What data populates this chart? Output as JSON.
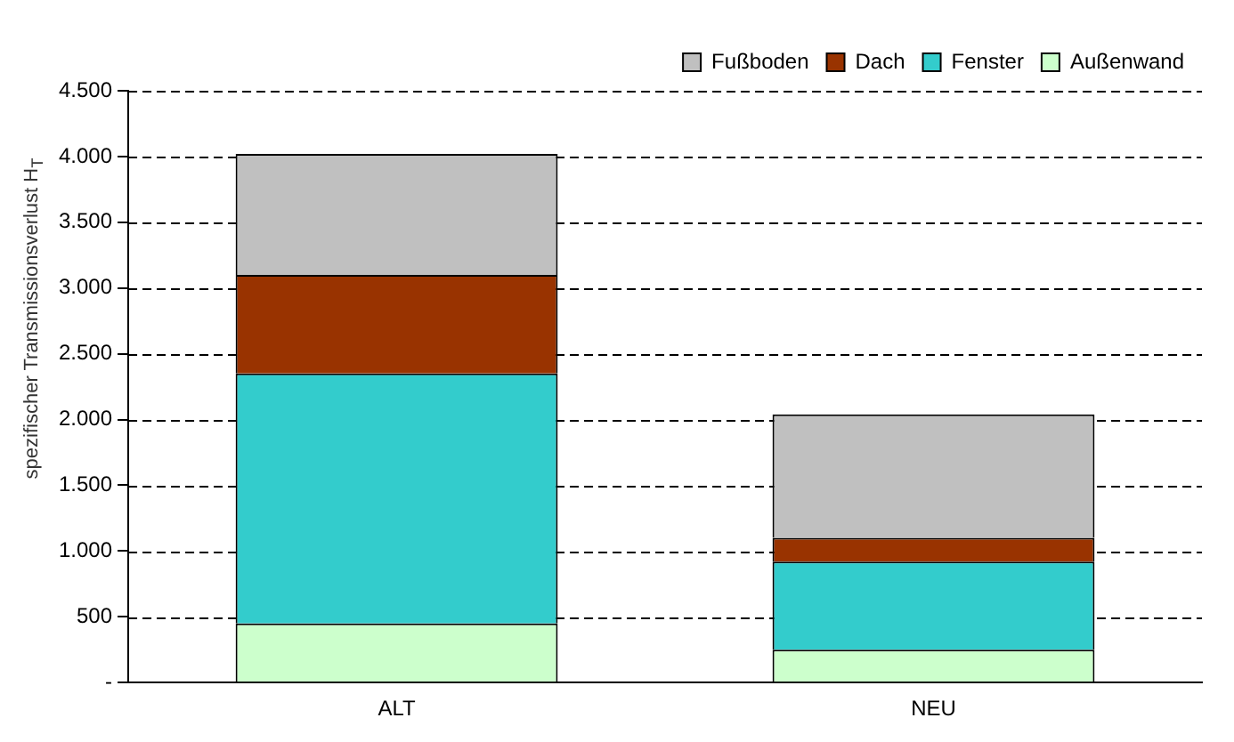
{
  "chart_data": {
    "type": "bar",
    "stacked": true,
    "ylabel": "spezifischer Transmissionsverlust H$_{T}$",
    "categories": [
      "ALT",
      "NEU"
    ],
    "series": [
      {
        "name": "Außenwand",
        "color": "#ccffcc",
        "values": [
          450,
          250
        ]
      },
      {
        "name": "Fenster",
        "color": "#33cccc",
        "values": [
          1900,
          670
        ]
      },
      {
        "name": "Dach",
        "color": "#993300",
        "values": [
          750,
          180
        ]
      },
      {
        "name": "Fußboden",
        "color": "#c0c0c0",
        "values": [
          920,
          940
        ]
      }
    ],
    "ylim": [
      0,
      4500
    ],
    "yticks": [
      {
        "value": 0,
        "label": "-"
      },
      {
        "value": 500,
        "label": "500"
      },
      {
        "value": 1000,
        "label": "1.000"
      },
      {
        "value": 1500,
        "label": "1.500"
      },
      {
        "value": 2000,
        "label": "2.000"
      },
      {
        "value": 2500,
        "label": "2.500"
      },
      {
        "value": 3000,
        "label": "3.000"
      },
      {
        "value": 3500,
        "label": "3.500"
      },
      {
        "value": 4000,
        "label": "4.000"
      },
      {
        "value": 4500,
        "label": "4.500"
      }
    ],
    "grid": "y",
    "legend": "top right"
  }
}
